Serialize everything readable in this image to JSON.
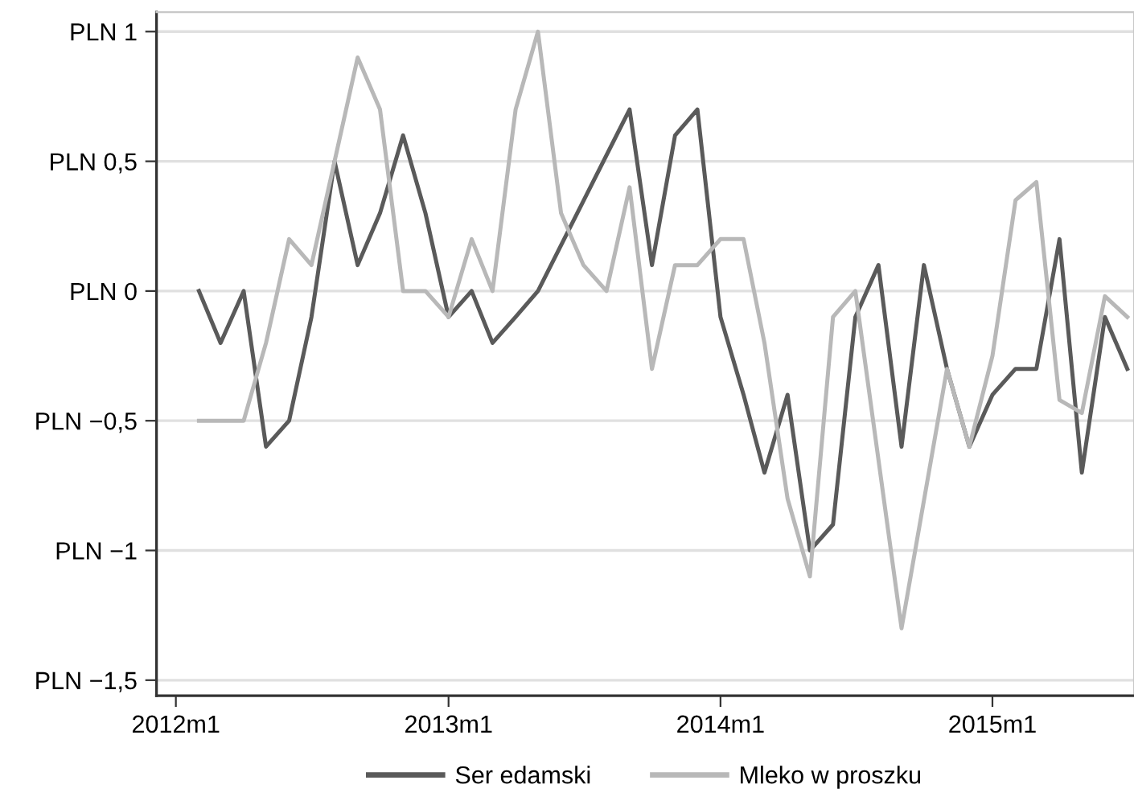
{
  "chart_data": {
    "type": "line",
    "xlim": [
      "2011-12-06",
      "2015-07-10"
    ],
    "xticks": [
      {
        "value": "2012-01",
        "label": "2012m1"
      },
      {
        "value": "2013-01",
        "label": "2013m1"
      },
      {
        "value": "2014-01",
        "label": "2014m1"
      },
      {
        "value": "2015-01",
        "label": "2015m1"
      }
    ],
    "ylim": [
      -1.56,
      1.075
    ],
    "yticks": [
      {
        "value": 1,
        "label": "PLN 1"
      },
      {
        "value": 0.5,
        "label": "PLN 0,5"
      },
      {
        "value": 0,
        "label": "PLN 0"
      },
      {
        "value": -0.5,
        "label": "PLN −0,5"
      },
      {
        "value": -1,
        "label": "PLN −1"
      },
      {
        "value": -1.5,
        "label": "PLN −1,5"
      }
    ],
    "grid": "y",
    "legend": "bottom",
    "marker": "none",
    "line_style": "solid",
    "series": [
      {
        "name": "Ser edamski",
        "color": "#5a5a5a",
        "x": [
          "2012-02",
          "2012-03",
          "2012-04",
          "2012-05",
          "2012-06",
          "2012-07",
          "2012-08",
          "2012-09",
          "2012-10",
          "2012-11",
          "2012-12",
          "2013-01",
          "2013-02",
          "2013-03",
          "2013-04",
          "2013-05",
          "2013-09",
          "2013-10",
          "2013-11",
          "2013-12",
          "2014-01",
          "2014-02",
          "2014-03",
          "2014-04",
          "2014-05",
          "2014-06",
          "2014-07",
          "2014-08",
          "2014-09",
          "2014-10",
          "2014-11",
          "2014-12",
          "2015-01",
          "2015-02",
          "2015-03",
          "2015-04",
          "2015-05",
          "2015-06",
          "2015-07"
        ],
        "values": [
          0,
          -0.2,
          0,
          -0.6,
          -0.5,
          -0.1,
          0.5,
          0.1,
          0.3,
          0.6,
          0.3,
          -0.1,
          0,
          -0.2,
          -0.1,
          0,
          0.7,
          0.1,
          0.6,
          0.7,
          -0.1,
          -0.4,
          -0.7,
          -0.4,
          -1.0,
          -0.9,
          -0.1,
          0.1,
          -0.6,
          0.1,
          -0.3,
          -0.6,
          -0.4,
          -0.3,
          -0.3,
          0.2,
          -0.7,
          -0.1,
          -0.3
        ]
      },
      {
        "name": "Mleko w proszku",
        "color": "#b8b8b8",
        "x": [
          "2012-02",
          "2012-03",
          "2012-04",
          "2012-05",
          "2012-06",
          "2012-07",
          "2012-08",
          "2012-09",
          "2012-10",
          "2012-11",
          "2012-12",
          "2013-01",
          "2013-02",
          "2013-03",
          "2013-04",
          "2013-05",
          "2013-06",
          "2013-07",
          "2013-08",
          "2013-09",
          "2013-10",
          "2013-11",
          "2013-12",
          "2014-01",
          "2014-02",
          "2014-03",
          "2014-04",
          "2014-05",
          "2014-06",
          "2014-07",
          "2014-09",
          "2014-11",
          "2014-12",
          "2015-01",
          "2015-02",
          "2015-03",
          "2015-04",
          "2015-05",
          "2015-06",
          "2015-07"
        ],
        "values": [
          -0.5,
          -0.5,
          -0.5,
          -0.2,
          0.2,
          0.1,
          0.5,
          0.9,
          0.7,
          0,
          0,
          -0.1,
          0.2,
          0,
          0.7,
          1.0,
          0.3,
          0.1,
          0,
          0.4,
          -0.3,
          0.1,
          0.1,
          0.2,
          0.2,
          -0.2,
          -0.8,
          -1.1,
          -0.1,
          0,
          -1.3,
          -0.3,
          -0.6,
          -0.25,
          0.35,
          0.42,
          -0.42,
          -0.47,
          -0.02,
          -0.1
        ]
      }
    ]
  }
}
